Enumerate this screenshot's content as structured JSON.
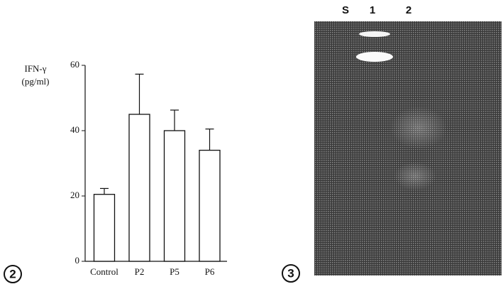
{
  "chart_data": {
    "type": "bar",
    "panel_label": "2",
    "y_label": [
      "IFN-γ",
      "(pg/ml)"
    ],
    "categories": [
      "Control",
      "P2",
      "P5",
      "P6"
    ],
    "values": [
      20.5,
      45,
      40,
      34
    ],
    "errors": [
      1.8,
      12.3,
      6.3,
      6.5
    ],
    "color": "#ffffff",
    "ylim": [
      0,
      60
    ],
    "yticks": [
      0,
      20,
      40,
      60
    ],
    "grid": false
  },
  "gel": {
    "panel_label": "3",
    "lane_labels": [
      "S",
      "1",
      "2"
    ]
  }
}
